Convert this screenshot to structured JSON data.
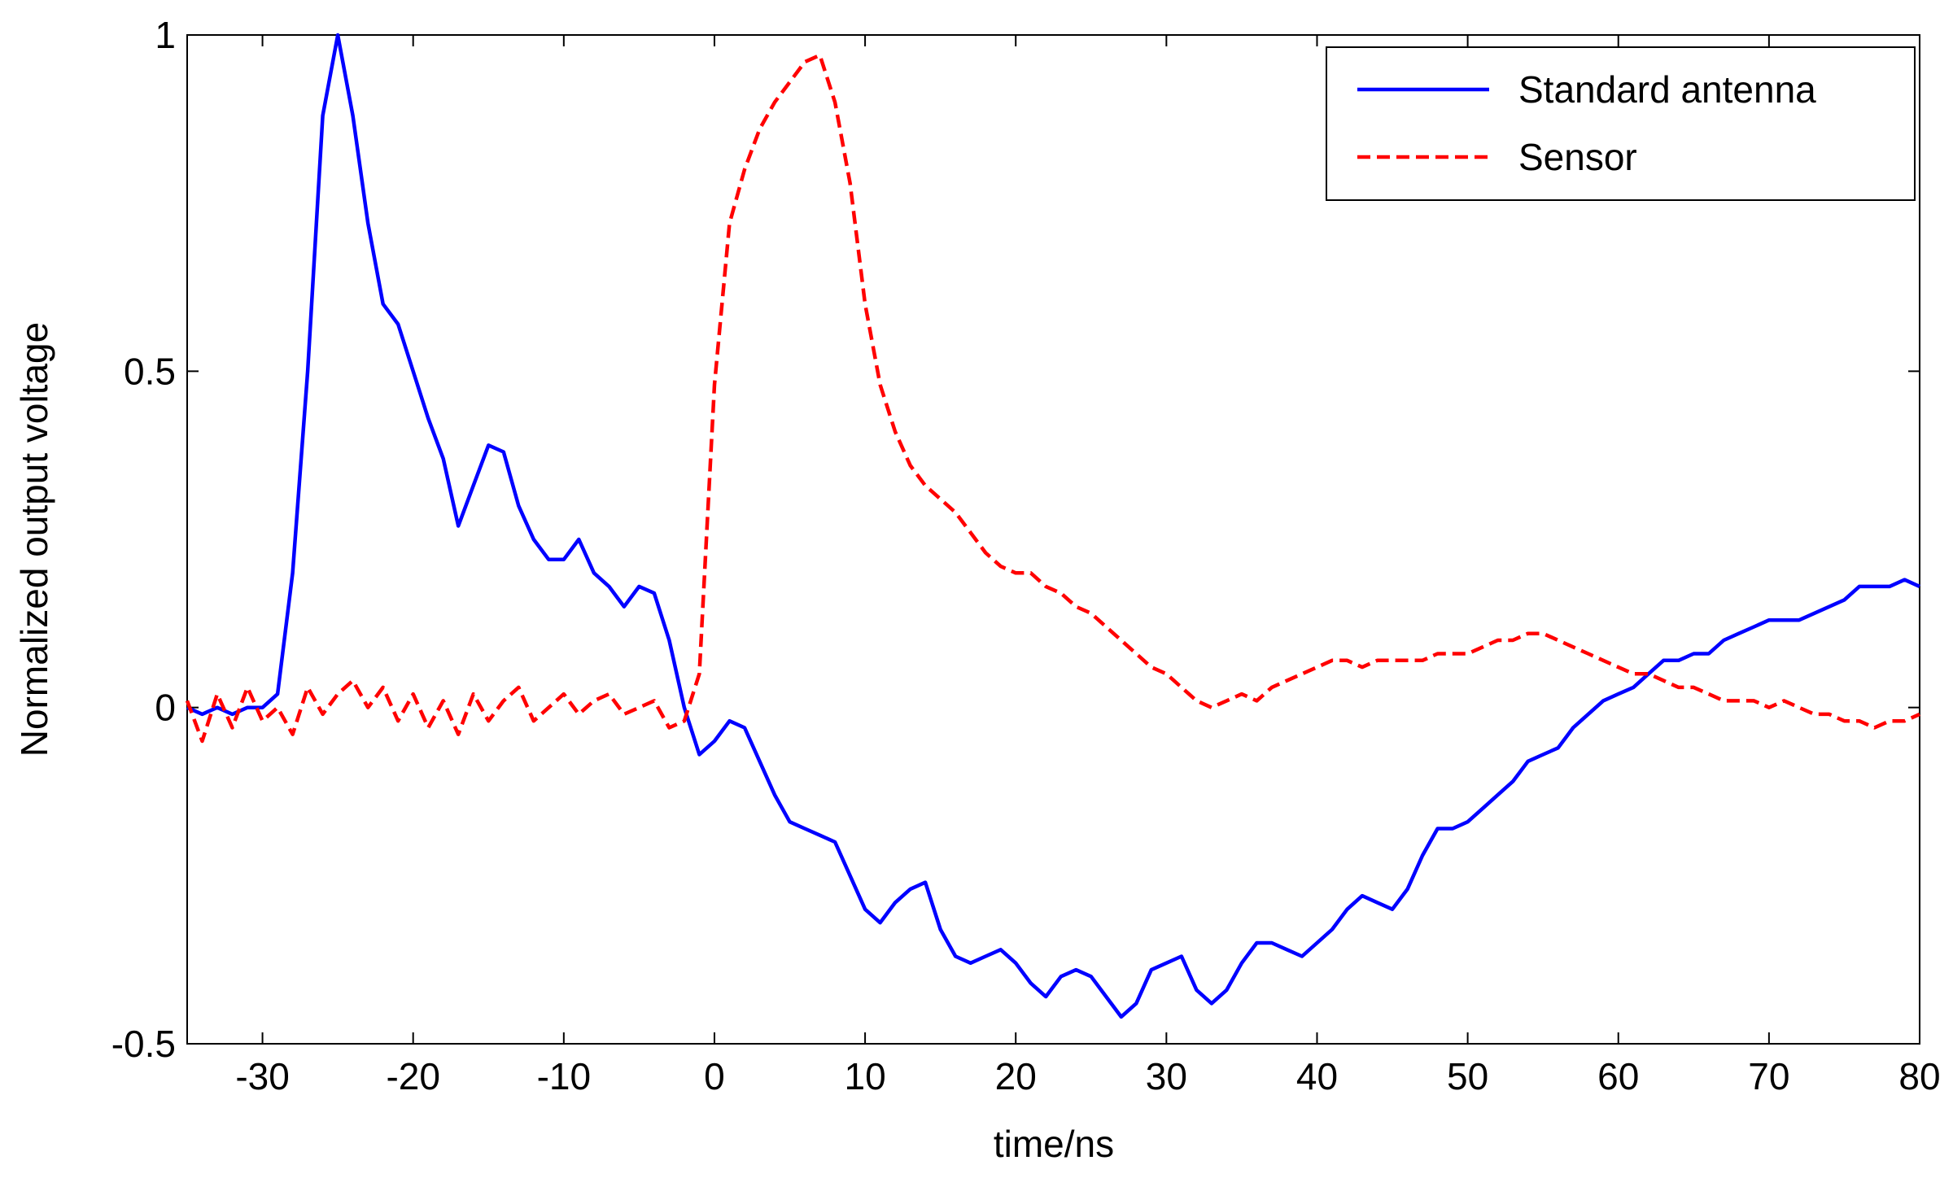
{
  "chart_data": {
    "type": "line",
    "xlabel": "time/ns",
    "ylabel": "Normalized output voltage",
    "xlim": [
      -35,
      80
    ],
    "xticks": [
      -30,
      -20,
      -10,
      0,
      10,
      20,
      30,
      40,
      50,
      60,
      70,
      80
    ],
    "ylim": [
      -0.5,
      1
    ],
    "yticks": [
      -0.5,
      0,
      0.5,
      1
    ],
    "legend": "upper right",
    "x": [
      -35,
      -34,
      -33,
      -32,
      -31,
      -30,
      -29,
      -28,
      -27,
      -26,
      -25,
      -24,
      -23,
      -22,
      -21,
      -20,
      -19,
      -18,
      -17,
      -16,
      -15,
      -14,
      -13,
      -12,
      -11,
      -10,
      -9,
      -8,
      -7,
      -6,
      -5,
      -4,
      -3,
      -2,
      -1,
      0,
      1,
      2,
      3,
      4,
      5,
      6,
      7,
      8,
      9,
      10,
      11,
      12,
      13,
      14,
      15,
      16,
      17,
      18,
      19,
      20,
      21,
      22,
      23,
      24,
      25,
      26,
      27,
      28,
      29,
      30,
      31,
      32,
      33,
      34,
      35,
      36,
      37,
      38,
      39,
      40,
      41,
      42,
      43,
      44,
      45,
      46,
      47,
      48,
      49,
      50,
      51,
      52,
      53,
      54,
      55,
      56,
      57,
      58,
      59,
      60,
      61,
      62,
      63,
      64,
      65,
      66,
      67,
      68,
      69,
      70,
      71,
      72,
      73,
      74,
      75,
      76,
      77,
      78,
      79,
      80
    ],
    "series": [
      {
        "name": "Standard antenna",
        "color": "#0000ff",
        "style": "solid",
        "values": [
          0.0,
          -0.01,
          0.0,
          -0.01,
          0.0,
          0.0,
          0.02,
          0.2,
          0.5,
          0.88,
          1.0,
          0.88,
          0.72,
          0.6,
          0.57,
          0.5,
          0.43,
          0.37,
          0.27,
          0.33,
          0.39,
          0.38,
          0.3,
          0.25,
          0.22,
          0.22,
          0.25,
          0.2,
          0.18,
          0.15,
          0.18,
          0.17,
          0.1,
          0.0,
          -0.07,
          -0.05,
          -0.02,
          -0.03,
          -0.08,
          -0.13,
          -0.17,
          -0.18,
          -0.19,
          -0.2,
          -0.25,
          -0.3,
          -0.32,
          -0.29,
          -0.27,
          -0.26,
          -0.33,
          -0.37,
          -0.38,
          -0.37,
          -0.36,
          -0.38,
          -0.41,
          -0.43,
          -0.4,
          -0.39,
          -0.4,
          -0.43,
          -0.46,
          -0.44,
          -0.39,
          -0.38,
          -0.37,
          -0.42,
          -0.44,
          -0.42,
          -0.38,
          -0.35,
          -0.35,
          -0.36,
          -0.37,
          -0.35,
          -0.33,
          -0.3,
          -0.28,
          -0.29,
          -0.3,
          -0.27,
          -0.22,
          -0.18,
          -0.18,
          -0.17,
          -0.15,
          -0.13,
          -0.11,
          -0.08,
          -0.07,
          -0.06,
          -0.03,
          -0.01,
          0.01,
          0.02,
          0.03,
          0.05,
          0.07,
          0.07,
          0.08,
          0.08,
          0.1,
          0.11,
          0.12,
          0.13,
          0.13,
          0.13,
          0.14,
          0.15,
          0.16,
          0.18,
          0.18,
          0.18,
          0.19,
          0.18
        ]
      },
      {
        "name": "Sensor",
        "color": "#ff0000",
        "style": "dashed",
        "values": [
          0.01,
          -0.05,
          0.02,
          -0.03,
          0.03,
          -0.02,
          0.0,
          -0.04,
          0.03,
          -0.01,
          0.02,
          0.04,
          0.0,
          0.03,
          -0.02,
          0.02,
          -0.03,
          0.01,
          -0.04,
          0.02,
          -0.02,
          0.01,
          0.03,
          -0.02,
          0.0,
          0.02,
          -0.01,
          0.01,
          0.02,
          -0.01,
          0.0,
          0.01,
          -0.03,
          -0.02,
          0.05,
          0.48,
          0.72,
          0.8,
          0.86,
          0.9,
          0.93,
          0.96,
          0.97,
          0.9,
          0.78,
          0.6,
          0.48,
          0.41,
          0.36,
          0.33,
          0.31,
          0.29,
          0.26,
          0.23,
          0.21,
          0.2,
          0.2,
          0.18,
          0.17,
          0.15,
          0.14,
          0.12,
          0.1,
          0.08,
          0.06,
          0.05,
          0.03,
          0.01,
          0.0,
          0.01,
          0.02,
          0.01,
          0.03,
          0.04,
          0.05,
          0.06,
          0.07,
          0.07,
          0.06,
          0.07,
          0.07,
          0.07,
          0.07,
          0.08,
          0.08,
          0.08,
          0.09,
          0.1,
          0.1,
          0.11,
          0.11,
          0.1,
          0.09,
          0.08,
          0.07,
          0.06,
          0.05,
          0.05,
          0.04,
          0.03,
          0.03,
          0.02,
          0.01,
          0.01,
          0.01,
          0.0,
          0.01,
          0.0,
          -0.01,
          -0.01,
          -0.02,
          -0.02,
          -0.03,
          -0.02,
          -0.02,
          -0.01
        ]
      }
    ]
  }
}
